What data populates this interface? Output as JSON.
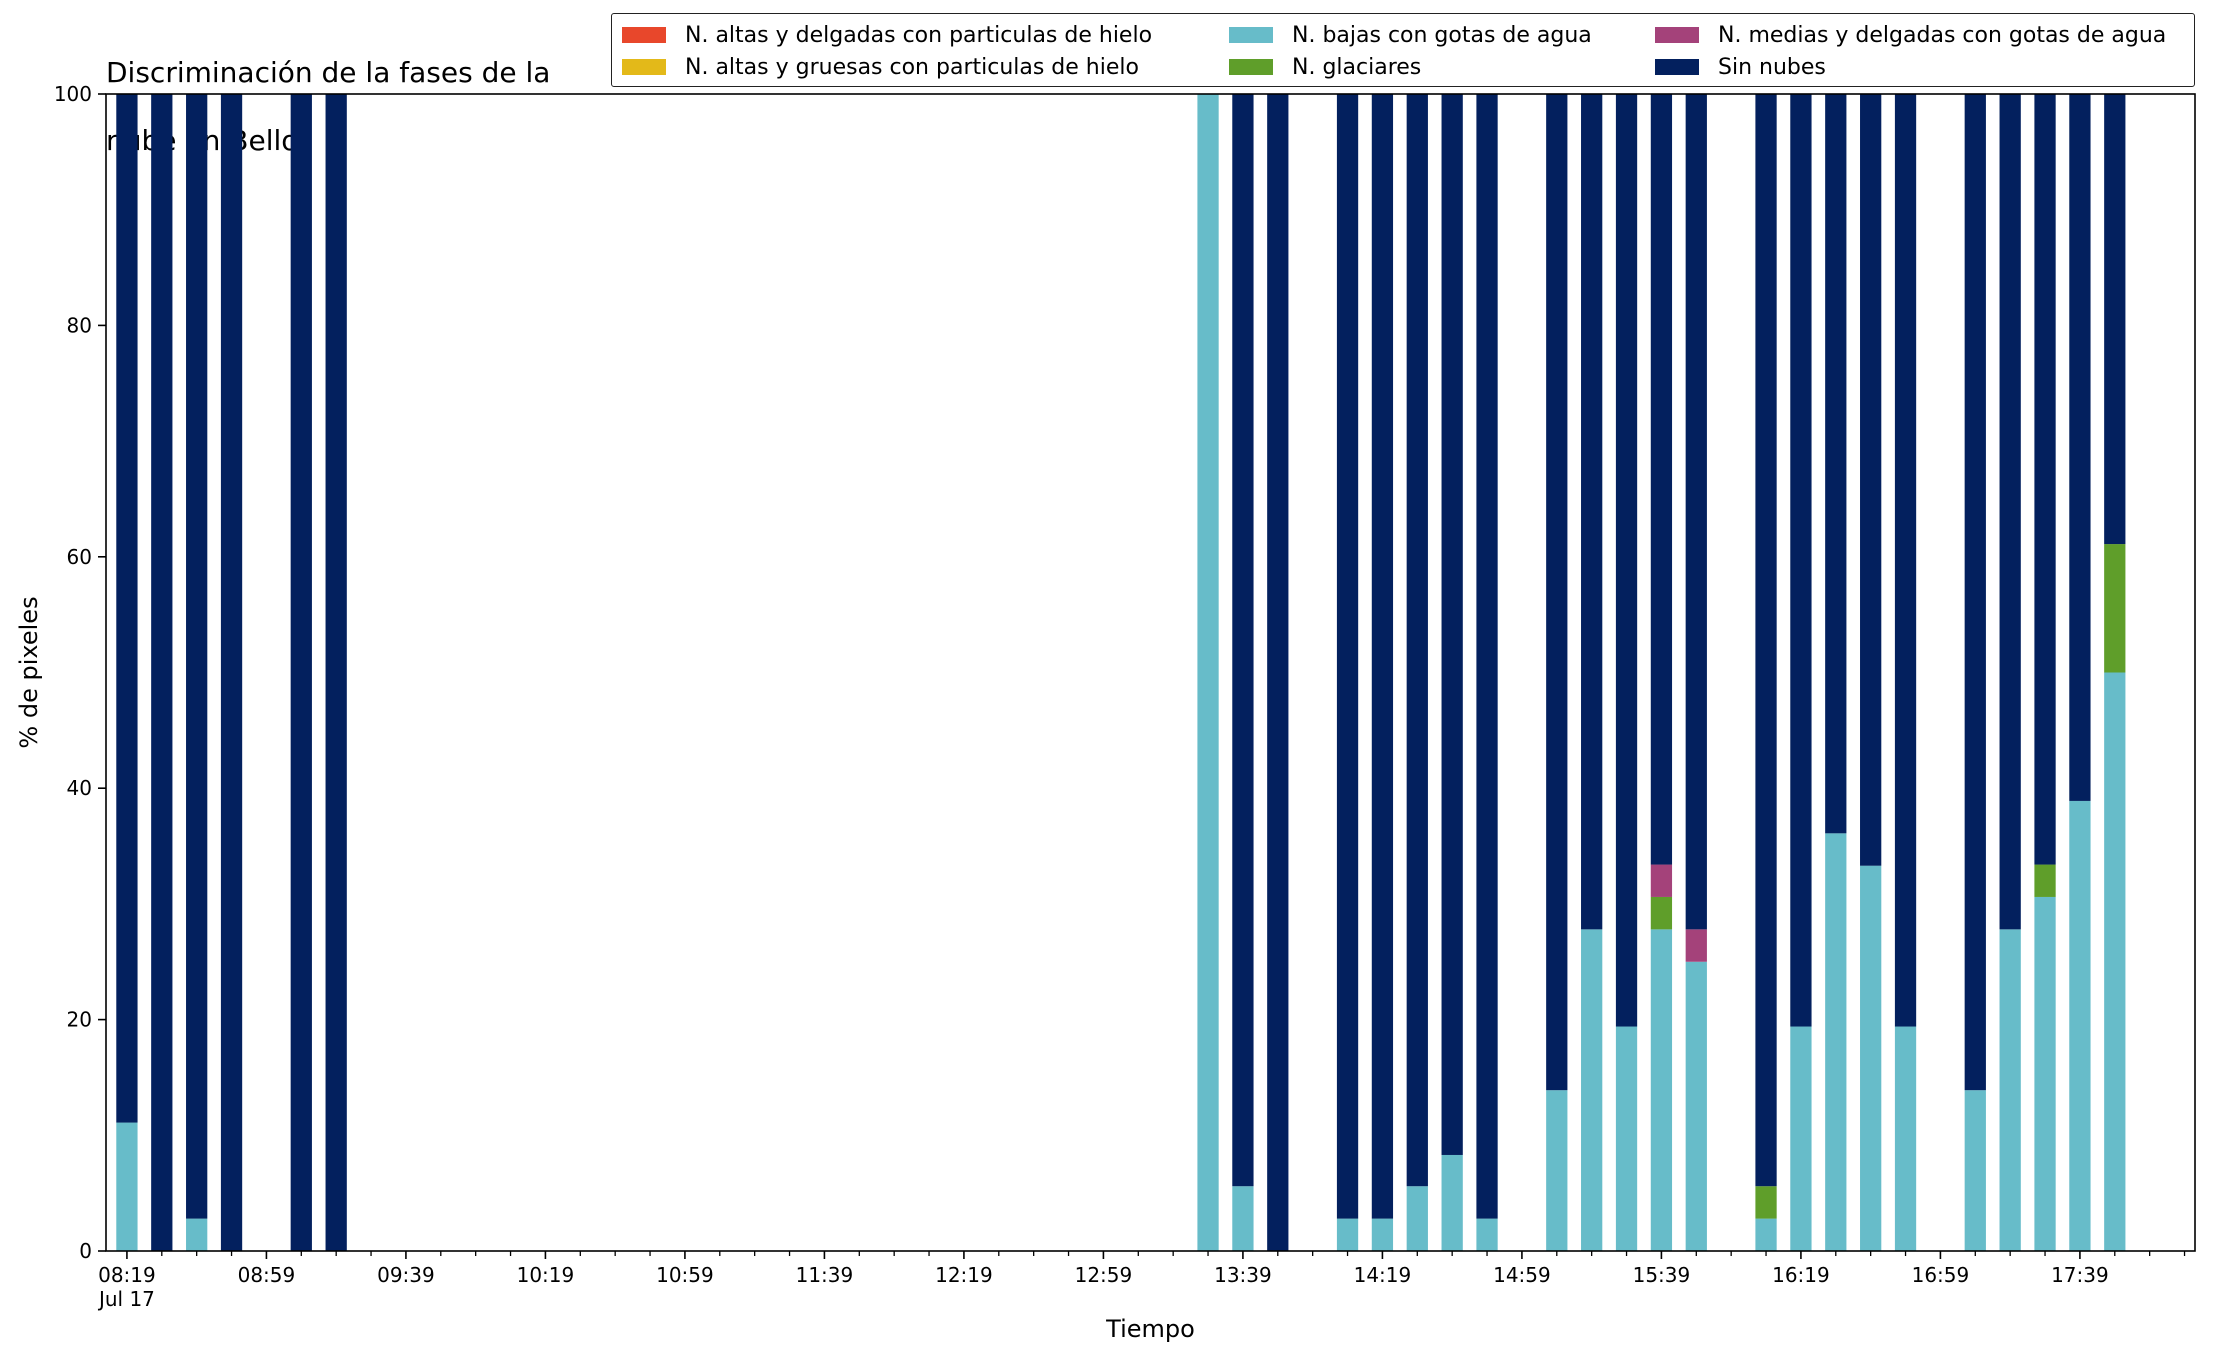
{
  "chart_data": {
    "type": "bar",
    "stacked": true,
    "title_lines": [
      "Discriminación de la fases de la",
      "nube en Bello"
    ],
    "xlabel": "Tiempo",
    "ylabel": "% de pixeles",
    "ylim": [
      0,
      100
    ],
    "yticks": [
      0,
      20,
      40,
      60,
      80,
      100
    ],
    "grid": false,
    "legend_position": "top-right",
    "xlim_minutes": [
      493,
      1092
    ],
    "x_date_label": "Jul 17",
    "xtick_labels": [
      "08:19",
      "08:59",
      "09:39",
      "10:19",
      "10:59",
      "11:39",
      "12:19",
      "12:59",
      "13:39",
      "14:19",
      "14:59",
      "15:39",
      "16:19",
      "16:59",
      "17:39"
    ],
    "xtick_minutes": [
      499,
      539,
      579,
      619,
      659,
      699,
      739,
      779,
      819,
      859,
      899,
      939,
      979,
      1019,
      1059
    ],
    "minor_tick_minutes": [
      509,
      519,
      529,
      549,
      559,
      569,
      589,
      599,
      609,
      629,
      639,
      649,
      669,
      679,
      689,
      709,
      719,
      729,
      749,
      759,
      769,
      789,
      799,
      809,
      829,
      839,
      849,
      869,
      879,
      889,
      909,
      919,
      929,
      949,
      959,
      969,
      989,
      999,
      1009,
      1029,
      1039,
      1049,
      1069,
      1079,
      1089
    ],
    "series": [
      {
        "name": "N. altas y delgadas con particulas de hielo",
        "color": "#e8472b"
      },
      {
        "name": "N. altas y gruesas con particulas de hielo",
        "color": "#e3b919"
      },
      {
        "name": "N. bajas con gotas de agua",
        "color": "#67bcc9"
      },
      {
        "name": "N. glaciares",
        "color": "#5f9e2a"
      },
      {
        "name": "N. medias y delgadas con gotas de agua",
        "color": "#a4427a"
      },
      {
        "name": "Sin nubes",
        "color": "#03205e"
      }
    ],
    "bars": [
      {
        "time": "08:19",
        "values": [
          0,
          0,
          11.1,
          0,
          0,
          88.9
        ]
      },
      {
        "time": "08:29",
        "values": [
          0,
          0,
          0,
          0,
          0,
          100
        ]
      },
      {
        "time": "08:39",
        "values": [
          0,
          0,
          2.8,
          0,
          0,
          97.2
        ]
      },
      {
        "time": "08:49",
        "values": [
          0,
          0,
          0,
          0,
          0,
          100
        ]
      },
      {
        "time": "09:09",
        "values": [
          0,
          0,
          0,
          0,
          0,
          100
        ]
      },
      {
        "time": "09:19",
        "values": [
          0,
          0,
          0,
          0,
          0,
          100
        ]
      },
      {
        "time": "13:29",
        "values": [
          0,
          0,
          100,
          0,
          0,
          0
        ]
      },
      {
        "time": "13:39",
        "values": [
          0,
          0,
          5.6,
          0,
          0,
          94.4
        ]
      },
      {
        "time": "13:49",
        "values": [
          0,
          0,
          0,
          0,
          0,
          100
        ]
      },
      {
        "time": "14:09",
        "values": [
          0,
          0,
          2.8,
          0,
          0,
          97.2
        ]
      },
      {
        "time": "14:19",
        "values": [
          0,
          0,
          2.8,
          0,
          0,
          97.2
        ]
      },
      {
        "time": "14:29",
        "values": [
          0,
          0,
          5.6,
          0,
          0,
          94.4
        ]
      },
      {
        "time": "14:39",
        "values": [
          0,
          0,
          8.3,
          0,
          0,
          91.7
        ]
      },
      {
        "time": "14:49",
        "values": [
          0,
          0,
          2.8,
          0,
          0,
          97.2
        ]
      },
      {
        "time": "15:09",
        "values": [
          0,
          0,
          13.9,
          0,
          0,
          86.1
        ]
      },
      {
        "time": "15:19",
        "values": [
          0,
          0,
          27.8,
          0,
          0,
          72.2
        ]
      },
      {
        "time": "15:29",
        "values": [
          0,
          0,
          19.4,
          0,
          0,
          80.6
        ]
      },
      {
        "time": "15:39",
        "values": [
          0,
          0,
          27.8,
          2.8,
          2.8,
          66.6
        ]
      },
      {
        "time": "15:49",
        "values": [
          0,
          0,
          25.0,
          0,
          2.8,
          72.2
        ]
      },
      {
        "time": "16:09",
        "values": [
          0,
          0,
          2.8,
          2.8,
          0,
          94.4
        ]
      },
      {
        "time": "16:19",
        "values": [
          0,
          0,
          19.4,
          0,
          0,
          80.6
        ]
      },
      {
        "time": "16:29",
        "values": [
          0,
          0,
          36.1,
          0,
          0,
          63.9
        ]
      },
      {
        "time": "16:39",
        "values": [
          0,
          0,
          33.3,
          0,
          0,
          66.7
        ]
      },
      {
        "time": "16:49",
        "values": [
          0,
          0,
          19.4,
          0,
          0,
          80.6
        ]
      },
      {
        "time": "17:09",
        "values": [
          0,
          0,
          13.9,
          0,
          0,
          86.1
        ]
      },
      {
        "time": "17:19",
        "values": [
          0,
          0,
          27.8,
          0,
          0,
          72.2
        ]
      },
      {
        "time": "17:29",
        "values": [
          0,
          0,
          30.6,
          2.8,
          0,
          66.6
        ]
      },
      {
        "time": "17:39",
        "values": [
          0,
          0,
          38.9,
          0,
          0,
          61.1
        ]
      },
      {
        "time": "17:49",
        "values": [
          0,
          0,
          50.0,
          11.1,
          0,
          38.9
        ]
      }
    ]
  }
}
